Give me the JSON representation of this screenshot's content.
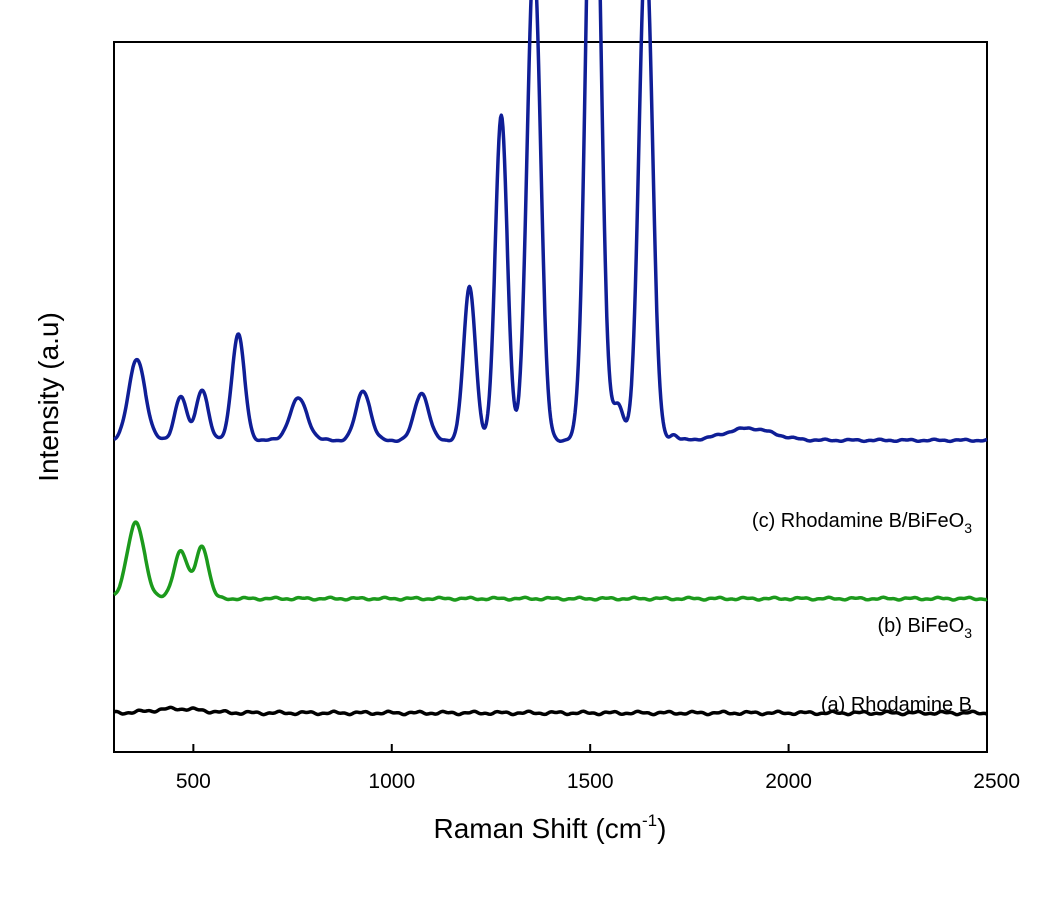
{
  "chart_data": {
    "type": "line",
    "xlabel": "Raman Shift (cm",
    "xlabel_superscript": "-1",
    "xlabel_suffix": ")",
    "ylabel": "Intensity (a.u)",
    "xlim": [
      300,
      2500
    ],
    "ylim": [
      0,
      100
    ],
    "x_ticks": [
      500,
      1000,
      1500,
      2000,
      2500
    ],
    "y_ticks_shown": false,
    "grid": false,
    "series": [
      {
        "name": "(a) Rhodamine B",
        "label_parts": [
          "(a) Rhodamine B"
        ],
        "color": "#000000",
        "baseline": 5.5,
        "noise_amplitude": 0.15,
        "peaks": [
          {
            "x": 460,
            "height": 0.6,
            "width": 60
          }
        ]
      },
      {
        "name": "(b) BiFeO3",
        "label_parts": [
          "(b) BiFeO",
          "3"
        ],
        "color": "#1c9a1c",
        "baseline": 21.6,
        "noise_amplitude": 0.12,
        "peaks": [
          {
            "x": 355,
            "height": 10.6,
            "width": 22
          },
          {
            "x": 468,
            "height": 6.8,
            "width": 17
          },
          {
            "x": 522,
            "height": 7.4,
            "width": 16
          }
        ]
      },
      {
        "name": "(c) Rhodamine B/BiFeO3",
        "label_parts": [
          "(c) Rhodamine B/BiFeO",
          "3"
        ],
        "color": "#0f1e96",
        "baseline": 43.9,
        "noise_amplitude": 0.1,
        "peaks": [
          {
            "x": 358,
            "height": 11.4,
            "width": 21
          },
          {
            "x": 468,
            "height": 6.2,
            "width": 15
          },
          {
            "x": 522,
            "height": 7.2,
            "width": 15
          },
          {
            "x": 613,
            "height": 14.9,
            "width": 16
          },
          {
            "x": 765,
            "height": 5.9,
            "width": 22
          },
          {
            "x": 928,
            "height": 7.0,
            "width": 18
          },
          {
            "x": 1075,
            "height": 6.7,
            "width": 18
          },
          {
            "x": 1196,
            "height": 21.6,
            "width": 15
          },
          {
            "x": 1276,
            "height": 45.8,
            "width": 15
          },
          {
            "x": 1358,
            "height": 68.1,
            "width": 17
          },
          {
            "x": 1508,
            "height": 99.0,
            "width": 18
          },
          {
            "x": 1570,
            "height": 5.0,
            "width": 14
          },
          {
            "x": 1640,
            "height": 69.9,
            "width": 17
          },
          {
            "x": 1710,
            "height": 0.8,
            "width": 10
          },
          {
            "x": 1900,
            "height": 1.7,
            "width": 60
          }
        ]
      }
    ]
  }
}
